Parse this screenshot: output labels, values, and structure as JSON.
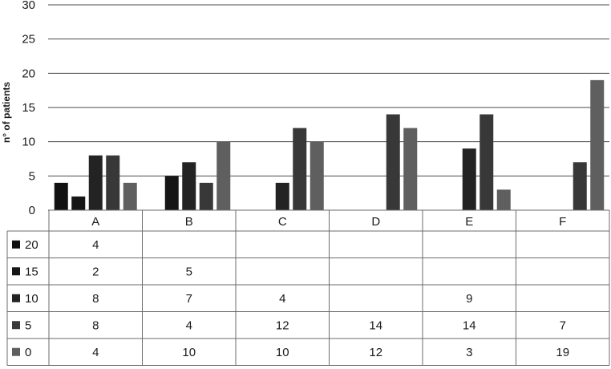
{
  "chart_data": {
    "type": "bar",
    "title": "",
    "xlabel": "",
    "ylabel": "n° of patients",
    "ylim": [
      0,
      30
    ],
    "yticks": [
      0,
      5,
      10,
      15,
      20,
      25,
      30
    ],
    "grid": true,
    "legend_placement": "table-left",
    "categories": [
      "A",
      "B",
      "C",
      "D",
      "E",
      "F"
    ],
    "series": [
      {
        "name": "20",
        "color": "#111111",
        "values": [
          4,
          null,
          null,
          null,
          null,
          null
        ]
      },
      {
        "name": "15",
        "color": "#161616",
        "values": [
          2,
          5,
          null,
          null,
          null,
          null
        ]
      },
      {
        "name": "10",
        "color": "#232323",
        "values": [
          8,
          7,
          4,
          null,
          9,
          null
        ]
      },
      {
        "name": "5",
        "color": "#383838",
        "values": [
          8,
          4,
          12,
          14,
          14,
          7
        ]
      },
      {
        "name": "0",
        "color": "#5f5f5f",
        "values": [
          4,
          10,
          10,
          12,
          3,
          19
        ]
      }
    ]
  }
}
